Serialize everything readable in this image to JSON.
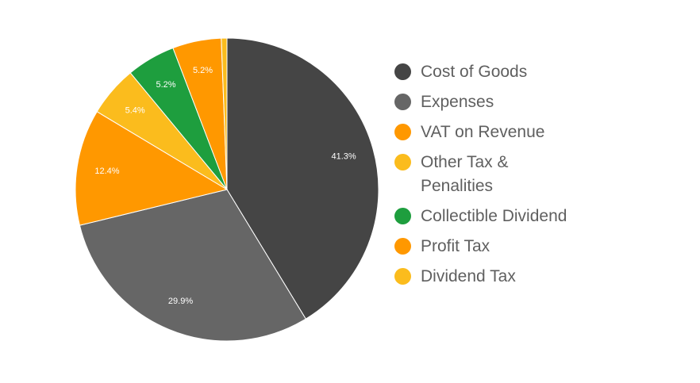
{
  "chart_data": {
    "type": "pie",
    "title": "",
    "slices": [
      {
        "label": "Cost of Goods",
        "value": 41.3,
        "display": "41.3%",
        "color": "#454545"
      },
      {
        "label": "Expenses",
        "value": 29.9,
        "display": "29.9%",
        "color": "#666666"
      },
      {
        "label": "VAT on Revenue",
        "value": 12.4,
        "display": "12.4%",
        "color": "#ff9800"
      },
      {
        "label": "Other Tax & Penalities",
        "value": 5.4,
        "display": "5.4%",
        "color": "#fbbc1d"
      },
      {
        "label": "Collectible Dividend",
        "value": 5.2,
        "display": "5.2%",
        "color": "#1e9e3e"
      },
      {
        "label": "Profit Tax",
        "value": 5.2,
        "display": "5.2%",
        "color": "#ff9800"
      },
      {
        "label": "Dividend Tax",
        "value": 0.6,
        "display": "",
        "color": "#fbbc1d"
      }
    ],
    "legend_position": "right"
  }
}
